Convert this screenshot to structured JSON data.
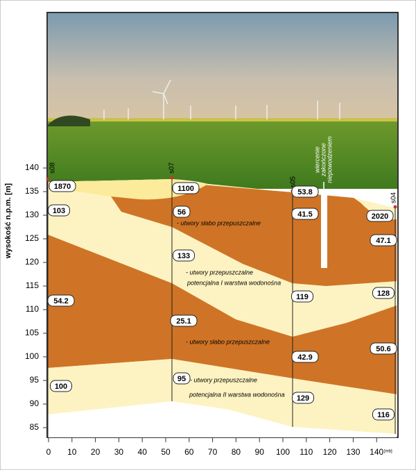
{
  "axes": {
    "y_label": "wysokość n.p.m. [m]",
    "y_ticks": [
      85,
      90,
      95,
      100,
      105,
      110,
      115,
      120,
      125,
      130,
      135,
      140
    ],
    "x_ticks": [
      0,
      10,
      20,
      30,
      40,
      50,
      60,
      70,
      80,
      90,
      100,
      110,
      120,
      130,
      140
    ],
    "x_unit": "[mb]"
  },
  "boreholes": [
    "s08",
    "s07",
    "s05",
    "s04"
  ],
  "resistivity": [
    "1870",
    "103",
    "54.2",
    "100",
    "1100",
    "56",
    "133",
    "25.1",
    "95",
    "53.8",
    "41.5",
    "119",
    "42.9",
    "129",
    "2020",
    "47.1",
    "128",
    "50.6",
    "116"
  ],
  "annotations": [
    "- utwory słabo przepuszczalne",
    "- utwory przepuszczalne",
    "potencjalna I warstwa wodonośna",
    "- utwory słabo przepuszczalne",
    "- utwory przepuszczalne",
    "potencjalna  II warstwa wodonośna"
  ],
  "note": [
    "wiercenie",
    "zakończone",
    "niepowodzeniem"
  ]
}
